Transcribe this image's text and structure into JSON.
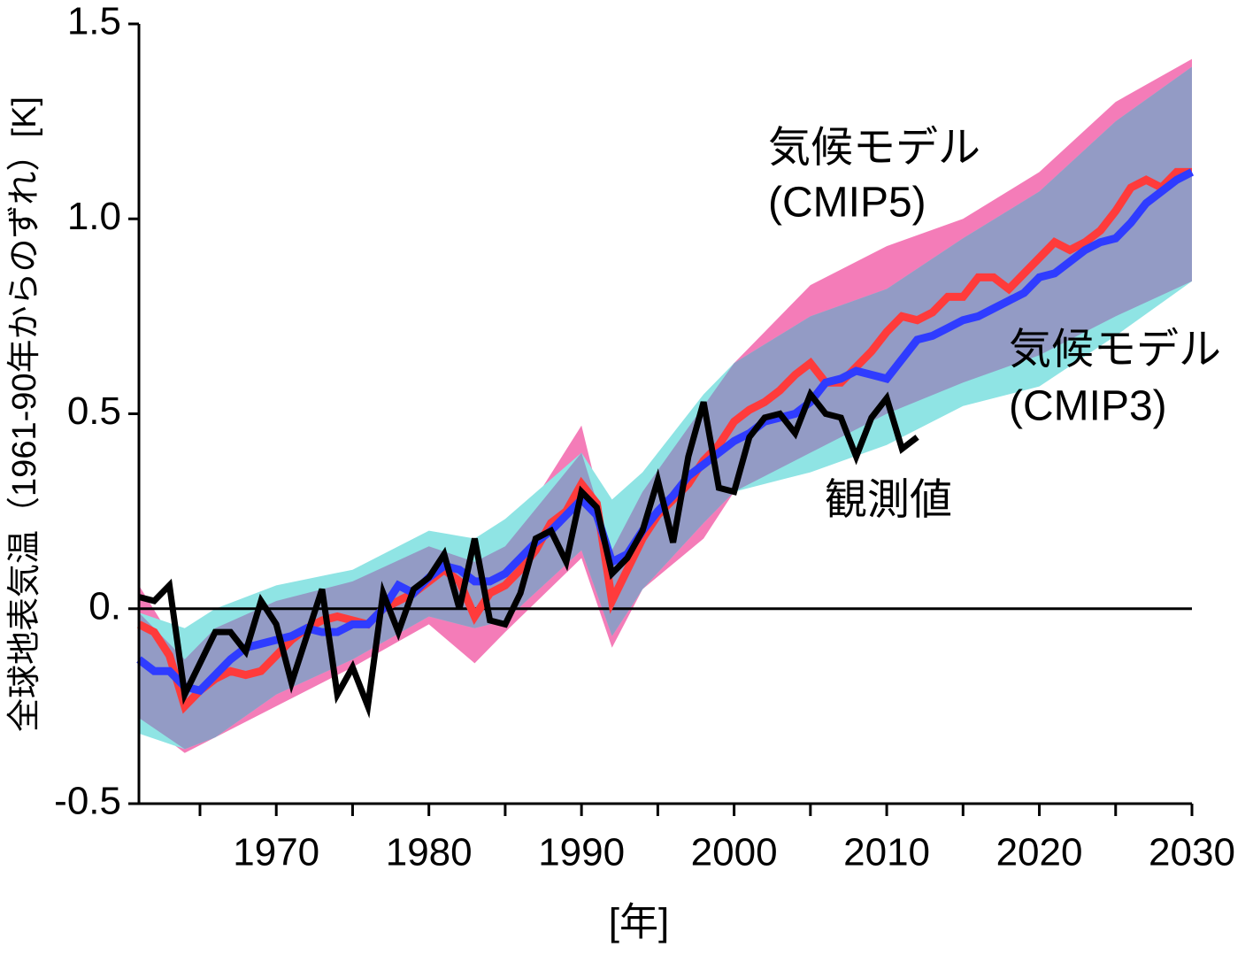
{
  "chart_data": {
    "type": "line",
    "ylabel": "全球地表気温（1961-90年からのずれ）[K]",
    "xlabel": "[年]",
    "xlim": [
      1961,
      2030
    ],
    "ylim": [
      -0.5,
      1.5
    ],
    "xticks": [
      1970,
      1980,
      1990,
      2000,
      2010,
      2020,
      2030
    ],
    "xminor_ticks": [
      1965,
      1975,
      1985,
      1995,
      2005,
      2015,
      2025
    ],
    "yticks": [
      -0.5,
      {
        "value": 0,
        "label": "0."
      },
      0.5,
      {
        "value": 1,
        "label": "1.0"
      },
      1.5
    ],
    "hline": 0,
    "x": [
      1961,
      1962,
      1963,
      1964,
      1965,
      1966,
      1967,
      1968,
      1969,
      1970,
      1971,
      1972,
      1973,
      1974,
      1975,
      1976,
      1977,
      1978,
      1979,
      1980,
      1981,
      1982,
      1983,
      1984,
      1985,
      1986,
      1987,
      1988,
      1989,
      1990,
      1991,
      1992,
      1993,
      1994,
      1995,
      1996,
      1997,
      1998,
      1999,
      2000,
      2001,
      2002,
      2003,
      2004,
      2005,
      2006,
      2007,
      2008,
      2009,
      2010,
      2011,
      2012,
      2013,
      2014,
      2015,
      2016,
      2017,
      2018,
      2019,
      2020,
      2021,
      2022,
      2023,
      2024,
      2025,
      2026,
      2027,
      2028,
      2029,
      2030
    ],
    "bands": [
      {
        "color": "#f47cb8",
        "x": [
          1961,
          1964,
          1966,
          1970,
          1975,
          1980,
          1983,
          1985,
          1990,
          1992,
          1994,
          1998,
          2000,
          2005,
          2010,
          2015,
          2020,
          2025,
          2030
        ],
        "upper": [
          0.06,
          -0.13,
          -0.05,
          0.02,
          0.07,
          0.16,
          0.12,
          0.16,
          0.47,
          0.15,
          0.3,
          0.52,
          0.63,
          0.83,
          0.93,
          1.0,
          1.12,
          1.3,
          1.41
        ],
        "lower": [
          -0.28,
          -0.37,
          -0.33,
          -0.25,
          -0.15,
          -0.04,
          -0.14,
          -0.06,
          0.13,
          -0.1,
          0.05,
          0.18,
          0.3,
          0.4,
          0.5,
          0.58,
          0.65,
          0.75,
          0.84
        ]
      },
      {
        "color": "#8fe4e4",
        "x": [
          1961,
          1964,
          1966,
          1970,
          1975,
          1980,
          1983,
          1985,
          1990,
          1992,
          1994,
          1998,
          2000,
          2005,
          2010,
          2015,
          2020,
          2025,
          2030
        ],
        "upper": [
          -0.01,
          -0.05,
          0.0,
          0.06,
          0.1,
          0.2,
          0.18,
          0.23,
          0.4,
          0.28,
          0.35,
          0.55,
          0.63,
          0.75,
          0.82,
          0.95,
          1.07,
          1.25,
          1.39
        ],
        "lower": [
          -0.32,
          -0.36,
          -0.33,
          -0.22,
          -0.13,
          -0.02,
          -0.05,
          -0.03,
          0.15,
          -0.07,
          0.05,
          0.22,
          0.3,
          0.35,
          0.42,
          0.52,
          0.57,
          0.7,
          0.84
        ]
      }
    ],
    "overlap_color": "#939bc5",
    "series": [
      {
        "color": "#ff3b3b",
        "values": [
          -0.04,
          -0.06,
          -0.12,
          -0.25,
          -0.21,
          -0.18,
          -0.16,
          -0.17,
          -0.16,
          -0.12,
          -0.08,
          -0.05,
          -0.03,
          -0.02,
          -0.03,
          -0.04,
          0.0,
          0.02,
          0.04,
          0.07,
          0.1,
          0.07,
          -0.02,
          0.04,
          0.06,
          0.1,
          0.15,
          0.22,
          0.25,
          0.32,
          0.27,
          0.02,
          0.1,
          0.18,
          0.24,
          0.28,
          0.32,
          0.38,
          0.42,
          0.48,
          0.51,
          0.53,
          0.56,
          0.6,
          0.63,
          0.58,
          0.58,
          0.62,
          0.66,
          0.71,
          0.75,
          0.74,
          0.76,
          0.8,
          0.8,
          0.85,
          0.85,
          0.82,
          0.86,
          0.9,
          0.94,
          0.92,
          0.94,
          0.97,
          1.02,
          1.08,
          1.1,
          1.08,
          1.12,
          1.12
        ]
      },
      {
        "color": "#2f3cff",
        "values": [
          -0.13,
          -0.16,
          -0.16,
          -0.2,
          -0.21,
          -0.17,
          -0.13,
          -0.1,
          -0.09,
          -0.08,
          -0.07,
          -0.05,
          -0.06,
          -0.06,
          -0.04,
          -0.04,
          0.0,
          0.06,
          0.04,
          0.08,
          0.11,
          0.1,
          0.07,
          0.07,
          0.09,
          0.13,
          0.17,
          0.2,
          0.24,
          0.28,
          0.24,
          0.12,
          0.14,
          0.2,
          0.25,
          0.29,
          0.34,
          0.37,
          0.4,
          0.43,
          0.45,
          0.48,
          0.49,
          0.5,
          0.53,
          0.58,
          0.59,
          0.61,
          0.6,
          0.59,
          0.64,
          0.69,
          0.7,
          0.72,
          0.74,
          0.75,
          0.77,
          0.79,
          0.81,
          0.85,
          0.86,
          0.89,
          0.92,
          0.94,
          0.95,
          0.99,
          1.04,
          1.07,
          1.1,
          1.12
        ]
      },
      {
        "color": "#000000",
        "values": [
          0.03,
          0.02,
          0.06,
          -0.22,
          -0.14,
          -0.06,
          -0.06,
          -0.11,
          0.02,
          -0.04,
          -0.19,
          -0.07,
          0.05,
          -0.22,
          -0.15,
          -0.25,
          0.04,
          -0.06,
          0.05,
          0.08,
          0.14,
          0.0,
          0.18,
          -0.03,
          -0.04,
          0.04,
          0.18,
          0.2,
          0.12,
          0.3,
          0.26,
          0.09,
          0.13,
          0.2,
          0.33,
          0.17,
          0.39,
          0.53,
          0.31,
          0.3,
          0.44,
          0.49,
          0.5,
          0.45,
          0.55,
          0.5,
          0.49,
          0.39,
          0.49,
          0.54,
          0.41,
          0.44,
          null,
          null,
          null,
          null,
          null,
          null,
          null,
          null,
          null,
          null,
          null,
          null,
          null,
          null,
          null,
          null,
          null,
          null
        ]
      }
    ],
    "annotations": [
      {
        "text": "気候モデル",
        "color": "#ff3b3b"
      },
      {
        "text": "(CMIP5)",
        "color": "#ff3b3b"
      },
      {
        "text": "気候モデル",
        "color": "#2f3cff"
      },
      {
        "text": "(CMIP3)",
        "color": "#2f3cff"
      },
      {
        "text": "観測値",
        "color": "#000000"
      }
    ]
  }
}
